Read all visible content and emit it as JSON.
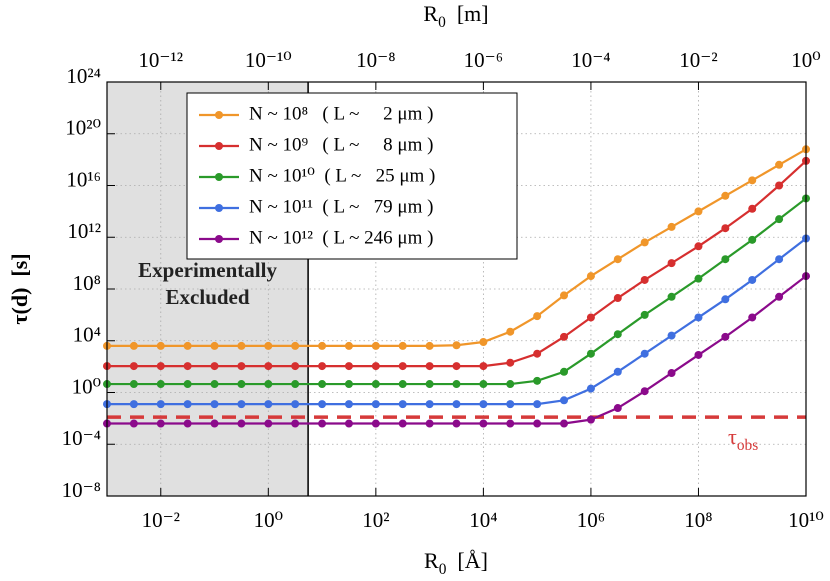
{
  "chart_data": {
    "type": "line",
    "x_label": "R0  [Å]",
    "x2_label": "R0  [m]",
    "y_label": "τ(d)  [s]",
    "log_x": true,
    "log_y": true,
    "grid": true,
    "legend": "upper left",
    "x": [
      0.001,
      0.00316,
      0.01,
      0.0316,
      0.1,
      0.316,
      1,
      3.16,
      10,
      31.6,
      100,
      316,
      1000,
      3160,
      10000.0,
      31600.0,
      100000.0,
      316000.0,
      1000000.0,
      3160000.0,
      10000000.0,
      31600000.0,
      100000000.0,
      316000000.0,
      1000000000.0,
      3160000000.0,
      10000000000.0
    ],
    "series": [
      {
        "name": "N ~ 10⁸   ( L ~     2 μm )",
        "color": "#f0962a",
        "values": [
          4000.0,
          4000.0,
          4000.0,
          4000.0,
          4000.0,
          4000.0,
          4000.0,
          4000.0,
          4000.0,
          4000.0,
          4000.0,
          4000.0,
          4000.0,
          4500.0,
          8000.0,
          50000.0,
          800000.0,
          32000000.0,
          1000000000.0,
          20000000000.0,
          400000000000.0,
          6300000000000.0,
          100000000000000.0,
          1600000000000000.0,
          2.5e+16,
          4e+17,
          6.3e+18
        ]
      },
      {
        "name": "N ~ 10⁹   ( L ~     8 μm )",
        "color": "#d62f2f",
        "values": [
          110,
          110,
          110,
          110,
          110,
          110,
          110,
          110,
          110,
          110,
          110,
          110,
          110,
          110,
          110,
          200,
          1000.0,
          20000.0,
          630000.0,
          20000000.0,
          500000000.0,
          10000000000.0,
          200000000000.0,
          5000000000000.0,
          160000000000000.0,
          1e+16,
          8e+17
        ]
      },
      {
        "name": "N ~ 10¹⁰  ( L ~   25 μm )",
        "color": "#2a9a2a",
        "values": [
          4.5,
          4.5,
          4.5,
          4.5,
          4.5,
          4.5,
          4.5,
          4.5,
          4.5,
          4.5,
          4.5,
          4.5,
          4.5,
          4.5,
          4.5,
          4.5,
          8,
          40,
          1000.0,
          32000.0,
          1000000.0,
          25000000.0,
          630000000.0,
          20000000000.0,
          630000000000.0,
          25000000000000.0,
          1000000000000000.0
        ]
      },
      {
        "name": "N ~ 10¹¹  ( L ~   79 μm )",
        "color": "#3f6fe0",
        "values": [
          0.126,
          0.126,
          0.126,
          0.126,
          0.126,
          0.126,
          0.126,
          0.126,
          0.126,
          0.126,
          0.126,
          0.126,
          0.126,
          0.126,
          0.126,
          0.126,
          0.126,
          0.25,
          2,
          40,
          1000.0,
          25000.0,
          630000.0,
          16000000.0,
          500000000.0,
          20000000000.0,
          800000000000.0
        ]
      },
      {
        "name": "N ~ 10¹²  ( L ~ 246 μm )",
        "color": "#8b0a8b",
        "values": [
          0.004,
          0.004,
          0.004,
          0.004,
          0.004,
          0.004,
          0.004,
          0.004,
          0.004,
          0.004,
          0.004,
          0.004,
          0.004,
          0.004,
          0.004,
          0.004,
          0.004,
          0.004,
          0.008,
          0.063,
          1.26,
          32,
          800,
          20000.0,
          630000.0,
          25000000.0,
          1000000000.0
        ]
      }
    ],
    "xlim": [
      0.001,
      10000000000.0
    ],
    "xticks": [
      {
        "value": 0.01,
        "label": "10⁻²"
      },
      {
        "value": 1,
        "label": "10⁰"
      },
      {
        "value": 100,
        "label": "10²"
      },
      {
        "value": 10000.0,
        "label": "10⁴"
      },
      {
        "value": 1000000.0,
        "label": "10⁶"
      },
      {
        "value": 100000000.0,
        "label": "10⁸"
      },
      {
        "value": 10000000000.0,
        "label": "10¹⁰"
      }
    ],
    "x2lim": [
      1e-13,
      1
    ],
    "x2ticks": [
      {
        "value": 1e-12,
        "label": "10⁻¹²"
      },
      {
        "value": 1e-10,
        "label": "10⁻¹⁰"
      },
      {
        "value": 1e-08,
        "label": "10⁻⁸"
      },
      {
        "value": 1e-06,
        "label": "10⁻⁶"
      },
      {
        "value": 0.0001,
        "label": "10⁻⁴"
      },
      {
        "value": 0.01,
        "label": "10⁻²"
      },
      {
        "value": 1,
        "label": "10⁰"
      }
    ],
    "ylim": [
      1e-08,
      1e+24
    ],
    "yticks": [
      {
        "value": 1e-08,
        "label": "10⁻⁸"
      },
      {
        "value": 0.0001,
        "label": "10⁻⁴"
      },
      {
        "value": 1,
        "label": "10⁰"
      },
      {
        "value": 10000.0,
        "label": "10⁴"
      },
      {
        "value": 100000000.0,
        "label": "10⁸"
      },
      {
        "value": 1000000000000.0,
        "label": "10¹²"
      },
      {
        "value": 1e+16,
        "label": "10¹⁶"
      },
      {
        "value": 1e+20,
        "label": "10²⁰"
      },
      {
        "value": 1e+24,
        "label": "10²⁴"
      }
    ],
    "shaded_region": {
      "xlim": [
        0.001,
        5.5
      ],
      "color": "#e0e0e0",
      "lines": [
        "Experimentally",
        "Excluded"
      ]
    },
    "hline": {
      "value": 0.0125,
      "label": "τobs",
      "color": "#d63a3a"
    }
  }
}
